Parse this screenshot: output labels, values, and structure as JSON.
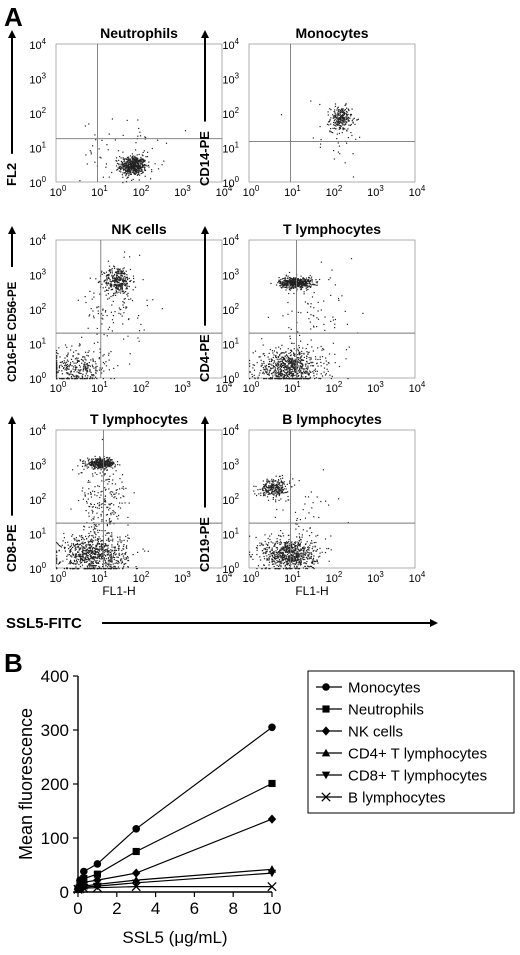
{
  "figure": {
    "panel_a_letter": "A",
    "panel_b_letter": "B",
    "shared_x_label": "SSL5-FITC"
  },
  "chart_data": [
    {
      "type": "scatter",
      "panel": "A",
      "title": "Neutrophils",
      "xlabel": "",
      "ylabel": "FL2",
      "x_scale": "log",
      "y_scale": "log",
      "xlim": [
        1,
        10000
      ],
      "ylim": [
        1,
        10000
      ],
      "x_ticks": [
        "10^0",
        "10^1",
        "10^2",
        "10^3",
        "10^4"
      ],
      "y_ticks": [
        "10^0",
        "10^1",
        "10^2",
        "10^3",
        "10^4"
      ],
      "quadrant_gate": {
        "x": 10,
        "y": 18
      },
      "populations": [
        {
          "center": [
            70,
            3
          ],
          "spread_decades": [
            0.16,
            0.14
          ],
          "events": 520
        },
        {
          "center": [
            40,
            8
          ],
          "spread_decades": [
            0.5,
            0.45
          ],
          "events": 70
        }
      ]
    },
    {
      "type": "scatter",
      "panel": "A",
      "title": "Monocytes",
      "xlabel": "",
      "ylabel": "CD14-PE",
      "x_scale": "log",
      "y_scale": "log",
      "xlim": [
        1,
        10000
      ],
      "ylim": [
        1,
        10000
      ],
      "x_ticks": [
        "10^0",
        "10^1",
        "10^2",
        "10^3",
        "10^4"
      ],
      "y_ticks": [
        "10^0",
        "10^1",
        "10^2",
        "10^3",
        "10^4"
      ],
      "quadrant_gate": {
        "x": 10,
        "y": 15
      },
      "populations": [
        {
          "center": [
            160,
            70
          ],
          "spread_decades": [
            0.13,
            0.18
          ],
          "events": 230
        },
        {
          "center": [
            110,
            30
          ],
          "spread_decades": [
            0.5,
            0.5
          ],
          "events": 35
        }
      ]
    },
    {
      "type": "scatter",
      "panel": "A",
      "title": "NK cells",
      "xlabel": "",
      "ylabel": "CD16-PE CD56-PE",
      "x_scale": "log",
      "y_scale": "log",
      "xlim": [
        1,
        10000
      ],
      "ylim": [
        1,
        10000
      ],
      "x_ticks": [
        "10^0",
        "10^1",
        "10^2",
        "10^3",
        "10^4"
      ],
      "y_ticks": [
        "10^0",
        "10^1",
        "10^2",
        "10^3",
        "10^4"
      ],
      "quadrant_gate": {
        "x": 12,
        "y": 20
      },
      "populations": [
        {
          "center": [
            30,
            700
          ],
          "spread_decades": [
            0.17,
            0.2
          ],
          "events": 300
        },
        {
          "center": [
            3,
            2
          ],
          "spread_decades": [
            0.4,
            0.28
          ],
          "events": 330
        },
        {
          "center": [
            25,
            120
          ],
          "spread_decades": [
            0.4,
            0.6
          ],
          "events": 120
        }
      ]
    },
    {
      "type": "scatter",
      "panel": "A",
      "title": "T lymphocytes",
      "xlabel": "",
      "ylabel": "CD4-PE",
      "x_scale": "log",
      "y_scale": "log",
      "xlim": [
        1,
        10000
      ],
      "ylim": [
        1,
        10000
      ],
      "x_ticks": [
        "10^0",
        "10^1",
        "10^2",
        "10^3",
        "10^4"
      ],
      "y_ticks": [
        "10^0",
        "10^1",
        "10^2",
        "10^3",
        "10^4"
      ],
      "quadrant_gate": {
        "x": 14,
        "y": 20
      },
      "populations": [
        {
          "center": [
            13,
            600
          ],
          "spread_decades": [
            0.2,
            0.08
          ],
          "events": 480
        },
        {
          "center": [
            9,
            2
          ],
          "spread_decades": [
            0.4,
            0.28
          ],
          "events": 720
        },
        {
          "center": [
            35,
            60
          ],
          "spread_decades": [
            0.5,
            0.6
          ],
          "events": 90
        }
      ]
    },
    {
      "type": "scatter",
      "panel": "A",
      "title": "T lymphocytes",
      "xlabel": "FL1-H",
      "ylabel": "CD8-PE",
      "x_scale": "log",
      "y_scale": "log",
      "xlim": [
        1,
        10000
      ],
      "ylim": [
        1,
        10000
      ],
      "x_ticks": [
        "10^0",
        "10^1",
        "10^2",
        "10^3",
        "10^4"
      ],
      "y_ticks": [
        "10^0",
        "10^1",
        "10^2",
        "10^3",
        "10^4"
      ],
      "quadrant_gate": {
        "x": 14,
        "y": 20
      },
      "populations": [
        {
          "center": [
            12,
            1100
          ],
          "spread_decades": [
            0.17,
            0.07
          ],
          "events": 380
        },
        {
          "center": [
            8,
            2.5
          ],
          "spread_decades": [
            0.4,
            0.3
          ],
          "events": 780
        },
        {
          "center": [
            14,
            80
          ],
          "spread_decades": [
            0.3,
            0.6
          ],
          "events": 220
        }
      ]
    },
    {
      "type": "scatter",
      "panel": "A",
      "title": "B lymphocytes",
      "xlabel": "FL1-H",
      "ylabel": "CD19-PE",
      "x_scale": "log",
      "y_scale": "log",
      "xlim": [
        1,
        10000
      ],
      "ylim": [
        1,
        10000
      ],
      "x_ticks": [
        "10^0",
        "10^1",
        "10^2",
        "10^3",
        "10^4"
      ],
      "y_ticks": [
        "10^0",
        "10^1",
        "10^2",
        "10^3",
        "10^4"
      ],
      "quadrant_gate": {
        "x": 10,
        "y": 20
      },
      "populations": [
        {
          "center": [
            4,
            220
          ],
          "spread_decades": [
            0.17,
            0.13
          ],
          "events": 260
        },
        {
          "center": [
            9,
            2.5
          ],
          "spread_decades": [
            0.32,
            0.25
          ],
          "events": 700
        },
        {
          "center": [
            15,
            30
          ],
          "spread_decades": [
            0.5,
            0.6
          ],
          "events": 60
        }
      ]
    },
    {
      "type": "line",
      "panel": "B",
      "title": "",
      "xlabel": "SSL5 (μg/mL)",
      "ylabel": "Mean fluorescence",
      "xlim": [
        0,
        10
      ],
      "ylim": [
        0,
        400
      ],
      "x_ticks": [
        0,
        2,
        4,
        6,
        8,
        10
      ],
      "y_ticks": [
        0,
        100,
        200,
        300,
        400
      ],
      "legend_position": "top-right",
      "x": [
        0,
        0.1,
        0.3,
        1,
        3,
        10
      ],
      "series": [
        {
          "name": "Monocytes",
          "marker": "circle",
          "values": [
            5,
            22,
            38,
            52,
            117,
            305
          ]
        },
        {
          "name": "Neutrophils",
          "marker": "square",
          "values": [
            5,
            15,
            25,
            33,
            75,
            201
          ]
        },
        {
          "name": "NK cells",
          "marker": "diamond",
          "values": [
            5,
            12,
            18,
            22,
            35,
            135
          ]
        },
        {
          "name": "CD4+ T lymphocytes",
          "marker": "triangle-up",
          "values": [
            5,
            8,
            11,
            14,
            22,
            42
          ]
        },
        {
          "name": "CD8+ T lymphocytes",
          "marker": "triangle-down",
          "values": [
            5,
            7,
            9,
            11,
            17,
            35
          ]
        },
        {
          "name": "B lymphocytes",
          "marker": "x",
          "values": [
            5,
            6,
            7,
            8,
            10,
            10
          ]
        }
      ]
    }
  ]
}
